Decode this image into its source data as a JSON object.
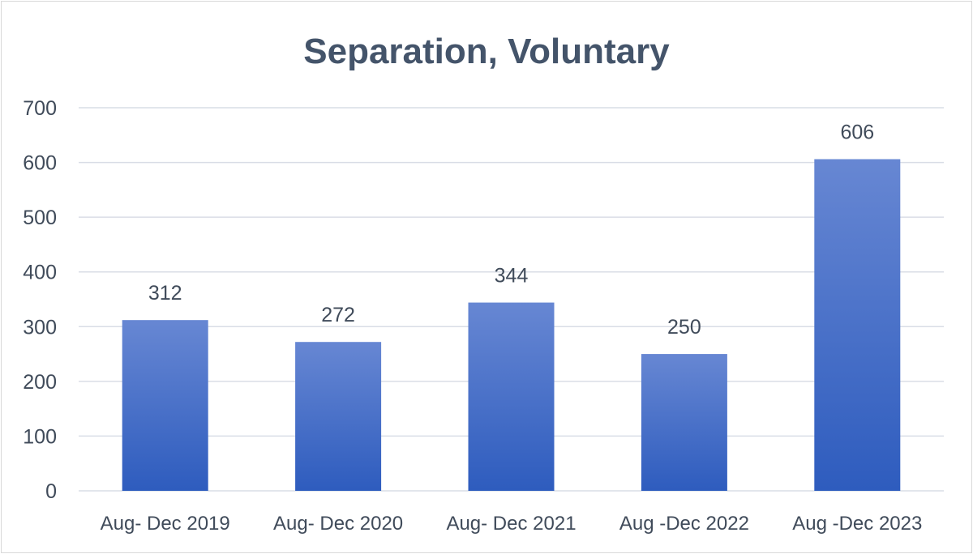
{
  "chart_data": {
    "type": "bar",
    "title": "Separation, Voluntary",
    "categories": [
      "Aug- Dec 2019",
      "Aug- Dec 2020",
      "Aug- Dec 2021",
      "Aug -Dec 2022",
      "Aug -Dec 2023"
    ],
    "values": [
      312,
      272,
      344,
      250,
      606
    ],
    "data_labels": [
      "312",
      "272",
      "344",
      "250",
      "606"
    ],
    "ylim": [
      0,
      700
    ],
    "yticks": [
      0,
      100,
      200,
      300,
      400,
      500,
      600,
      700
    ],
    "xlabel": "",
    "ylabel": "",
    "grid": true,
    "legend": "none",
    "colors": {
      "bar_top": "#6787d3",
      "bar_bottom": "#2e5cbe",
      "title": "#44546a",
      "text": "#404b5a",
      "grid": "#d9dde6"
    }
  }
}
